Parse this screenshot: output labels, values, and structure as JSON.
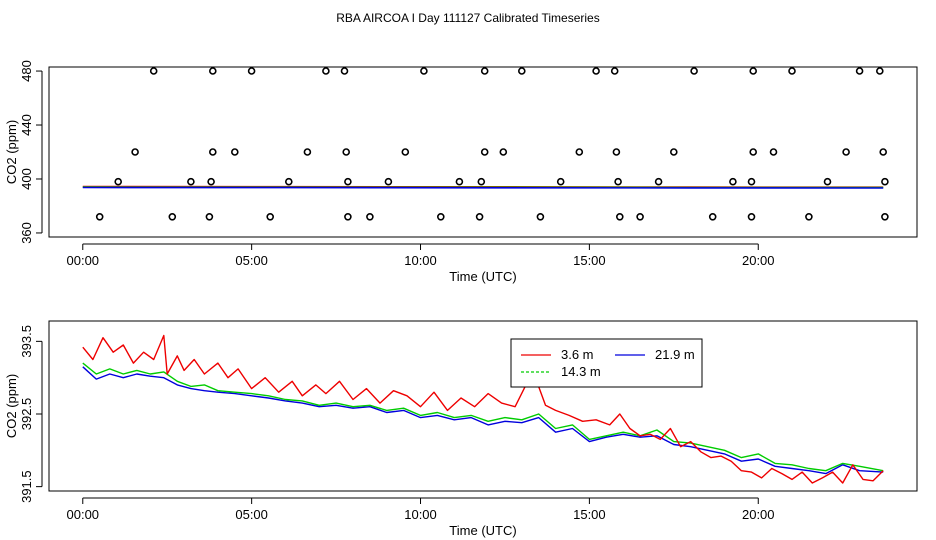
{
  "title": "RBA AIRCOA I  Day 111127  Calibrated Timeseries",
  "colors": {
    "red": "#ee0000",
    "green": "#00cc00",
    "blue": "#0000dd",
    "axis": "#000000"
  },
  "chart_data": [
    {
      "type": "scatter",
      "xlabel": "Time (UTC)",
      "ylabel": "CO2 (ppm)",
      "xlim": [
        -1,
        24.7
      ],
      "ylim": [
        357,
        483
      ],
      "xticks": [
        0,
        5,
        10,
        15,
        20
      ],
      "xtick_labels": [
        "00:00",
        "05:00",
        "10:00",
        "15:00",
        "20:00"
      ],
      "yticks": [
        360,
        400,
        440,
        480
      ],
      "ytick_labels": [
        "360",
        "400",
        "440",
        "480"
      ],
      "markers": {
        "values_ppm": [
          480,
          420,
          398,
          372
        ],
        "hours_480": [
          2.1,
          3.85,
          5.0,
          7.2,
          7.75,
          10.1,
          11.9,
          13.0,
          15.2,
          15.75,
          18.1,
          19.85,
          21.0,
          23.0,
          23.6
        ],
        "hours_420": [
          1.55,
          3.85,
          4.5,
          6.65,
          7.8,
          9.55,
          11.9,
          12.45,
          14.7,
          15.8,
          17.5,
          19.85,
          20.45,
          22.6,
          23.7
        ],
        "hours_398": [
          1.05,
          3.2,
          3.8,
          6.1,
          7.85,
          9.05,
          11.15,
          11.8,
          14.15,
          15.85,
          17.05,
          19.25,
          19.8,
          22.05,
          23.75
        ],
        "hours_372": [
          0.5,
          2.65,
          3.75,
          5.55,
          7.85,
          8.5,
          10.6,
          11.75,
          13.55,
          15.9,
          16.5,
          18.65,
          19.8,
          21.5,
          23.75
        ]
      },
      "series": [
        {
          "name": "3.6 m",
          "color": "#ee0000",
          "x": [
            0,
            6,
            12,
            18,
            23.7
          ],
          "values": [
            394.4,
            394.3,
            394.2,
            394.0,
            393.9
          ]
        },
        {
          "name": "14.3 m",
          "color": "#00cc00",
          "x": [
            0,
            6,
            12,
            18,
            23.7
          ],
          "values": [
            394.0,
            393.9,
            393.8,
            393.7,
            393.6
          ]
        },
        {
          "name": "21.9 m",
          "color": "#0000dd",
          "x": [
            0,
            6,
            12,
            18,
            23.7
          ],
          "values": [
            393.7,
            393.6,
            393.5,
            393.4,
            393.3
          ]
        }
      ]
    },
    {
      "type": "line",
      "xlabel": "Time (UTC)",
      "ylabel": "CO2 (ppm)",
      "xlim": [
        -1,
        24.7
      ],
      "ylim": [
        391.44,
        393.78
      ],
      "xticks": [
        0,
        5,
        10,
        15,
        20
      ],
      "xtick_labels": [
        "00:00",
        "05:00",
        "10:00",
        "15:00",
        "20:00"
      ],
      "yticks": [
        391.5,
        392.5,
        393.5
      ],
      "ytick_labels": [
        "391.5",
        "392.5",
        "393.5"
      ],
      "legend": {
        "placement": "top-center"
      },
      "series": [
        {
          "name": "3.6 m",
          "color": "#ee0000",
          "x": [
            0,
            0.3,
            0.6,
            0.9,
            1.2,
            1.5,
            1.8,
            2.1,
            2.4,
            2.5,
            2.8,
            3.0,
            3.3,
            3.6,
            4.0,
            4.3,
            4.6,
            5.0,
            5.4,
            5.8,
            6.2,
            6.5,
            6.9,
            7.2,
            7.6,
            8.0,
            8.4,
            8.8,
            9.2,
            9.6,
            10.0,
            10.4,
            10.8,
            11.2,
            11.6,
            12.0,
            12.4,
            12.8,
            13.1,
            13.4,
            13.7,
            14.0,
            14.4,
            14.8,
            15.2,
            15.6,
            15.9,
            16.2,
            16.5,
            16.8,
            17.1,
            17.4,
            17.7,
            18.0,
            18.3,
            18.6,
            18.9,
            19.2,
            19.5,
            19.8,
            20.1,
            20.4,
            20.7,
            21.0,
            21.3,
            21.6,
            21.9,
            22.2,
            22.5,
            22.8,
            23.1,
            23.4,
            23.7
          ],
          "values": [
            393.42,
            393.25,
            393.55,
            393.35,
            393.45,
            393.2,
            393.35,
            393.25,
            393.58,
            393.05,
            393.3,
            393.1,
            393.25,
            393.05,
            393.2,
            393.0,
            393.12,
            392.85,
            393.0,
            392.8,
            392.95,
            392.75,
            392.9,
            392.78,
            392.95,
            392.7,
            392.85,
            392.65,
            392.82,
            392.75,
            392.6,
            392.8,
            392.55,
            392.72,
            392.6,
            392.78,
            392.65,
            392.6,
            392.88,
            393.0,
            392.62,
            392.55,
            392.48,
            392.4,
            392.42,
            392.35,
            392.5,
            392.3,
            392.2,
            392.22,
            392.15,
            392.3,
            392.05,
            392.12,
            391.98,
            391.9,
            391.92,
            391.85,
            391.72,
            391.7,
            391.62,
            391.75,
            391.68,
            391.6,
            391.7,
            391.55,
            391.62,
            391.7,
            391.55,
            391.8,
            391.6,
            391.58,
            391.72
          ]
        },
        {
          "name": "14.3 m",
          "color": "#00cc00",
          "x": [
            0,
            0.4,
            0.8,
            1.2,
            1.6,
            2.0,
            2.4,
            2.8,
            3.2,
            3.6,
            4.0,
            4.5,
            5.0,
            5.5,
            6.0,
            6.5,
            7.0,
            7.5,
            8.0,
            8.5,
            9.0,
            9.5,
            10.0,
            10.5,
            11.0,
            11.5,
            12.0,
            12.5,
            13.0,
            13.5,
            14.0,
            14.5,
            15.0,
            15.5,
            16.0,
            16.5,
            17.0,
            17.5,
            18.0,
            18.5,
            19.0,
            19.5,
            20.0,
            20.5,
            21.0,
            21.5,
            22.0,
            22.5,
            23.0,
            23.7
          ],
          "values": [
            393.2,
            393.05,
            393.12,
            393.05,
            393.1,
            393.05,
            393.08,
            392.95,
            392.88,
            392.9,
            392.82,
            392.8,
            392.78,
            392.75,
            392.7,
            392.68,
            392.62,
            392.65,
            392.6,
            392.62,
            392.55,
            392.58,
            392.48,
            392.52,
            392.45,
            392.48,
            392.4,
            392.45,
            392.42,
            392.5,
            392.3,
            392.35,
            392.15,
            392.2,
            392.25,
            392.2,
            392.28,
            392.12,
            392.1,
            392.05,
            392.0,
            391.9,
            391.95,
            391.82,
            391.8,
            391.75,
            391.72,
            391.82,
            391.78,
            391.72
          ]
        },
        {
          "name": "21.9 m",
          "color": "#0000dd",
          "x": [
            0,
            0.4,
            0.8,
            1.2,
            1.6,
            2.0,
            2.4,
            2.8,
            3.2,
            3.6,
            4.0,
            4.5,
            5.0,
            5.5,
            6.0,
            6.5,
            7.0,
            7.5,
            8.0,
            8.5,
            9.0,
            9.5,
            10.0,
            10.5,
            11.0,
            11.5,
            12.0,
            12.5,
            13.0,
            13.5,
            14.0,
            14.5,
            15.0,
            15.5,
            16.0,
            16.5,
            17.0,
            17.5,
            18.0,
            18.5,
            19.0,
            19.5,
            20.0,
            20.5,
            21.0,
            21.5,
            22.0,
            22.5,
            23.0,
            23.7
          ],
          "values": [
            393.15,
            392.98,
            393.05,
            393.0,
            393.05,
            393.02,
            393.0,
            392.9,
            392.85,
            392.82,
            392.8,
            392.78,
            392.75,
            392.72,
            392.68,
            392.65,
            392.6,
            392.62,
            392.58,
            392.6,
            392.52,
            392.55,
            392.45,
            392.48,
            392.42,
            392.45,
            392.35,
            392.4,
            392.38,
            392.45,
            392.25,
            392.3,
            392.12,
            392.18,
            392.22,
            392.18,
            392.2,
            392.08,
            392.05,
            392.0,
            391.95,
            391.85,
            391.88,
            391.78,
            391.75,
            391.72,
            391.68,
            391.8,
            391.72,
            391.7
          ]
        }
      ]
    }
  ]
}
